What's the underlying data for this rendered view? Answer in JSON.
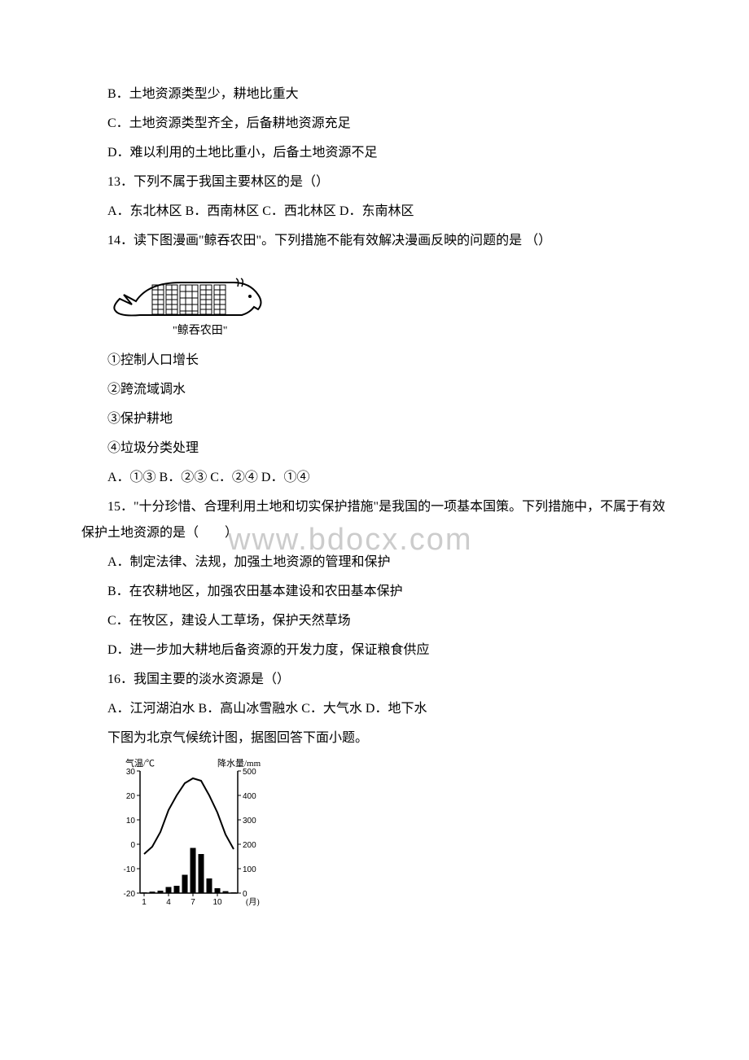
{
  "q12": {
    "optB": "B．土地资源类型少，耕地比重大",
    "optC": "C．土地资源类型齐全，后备耕地资源充足",
    "optD": "D．难以利用的土地比重小，后备土地资源不足"
  },
  "q13": {
    "stem": "13．下列不属于我国主要林区的是（）",
    "opts": "A．东北林区 B．西南林区 C．西北林区 D．东南林区"
  },
  "q14": {
    "stem": "14．读下图漫画\"鲸吞农田\"。下列措施不能有效解决漫画反映的问题的是 （）",
    "caption": "\"鲸吞农田\"",
    "item1": "①控制人口增长",
    "item2": "②跨流域调水",
    "item3": "③保护耕地",
    "item4": "④垃圾分类处理",
    "opts": "A．①③ B．②③ C．②④ D．①④"
  },
  "q15": {
    "stem": "15．\"十分珍惜、合理利用土地和切实保护措施\"是我国的一项基本国策。下列措施中，不属于有效保护土地资源的是（　　）",
    "optA": "A．制定法律、法规，加强土地资源的管理和保护",
    "optB": "B．在农耕地区，加强农田基本建设和农田基本保护",
    "optC": "C．在牧区，建设人工草场，保护天然草场",
    "optD": "D．进一步加大耕地后备资源的开发力度，保证粮食供应"
  },
  "q16": {
    "stem": "16．我国主要的淡水资源是（）",
    "opts": "A．江河湖泊水 B．高山冰雪融水 C．大气水 D．地下水"
  },
  "climate": {
    "intro": "下图为北京气候统计图，据图回答下面小题。",
    "temp_label": "气温/℃",
    "precip_label": "降水量/mm",
    "x_label": "(月)",
    "temp_ticks": [
      -20,
      -10,
      0,
      10,
      20,
      30
    ],
    "precip_ticks": [
      0,
      100,
      200,
      300,
      400,
      500
    ],
    "x_ticks": [
      1,
      4,
      7,
      10
    ],
    "temp_values": [
      -4,
      -1,
      5,
      14,
      20,
      25,
      27,
      26,
      20,
      13,
      4,
      -2
    ],
    "precip_values": [
      3,
      6,
      10,
      25,
      30,
      75,
      185,
      160,
      60,
      20,
      8,
      3
    ],
    "line_color": "#000000",
    "bar_color": "#000000",
    "bg_color": "#ffffff"
  },
  "watermark": "www.bdocx.com"
}
